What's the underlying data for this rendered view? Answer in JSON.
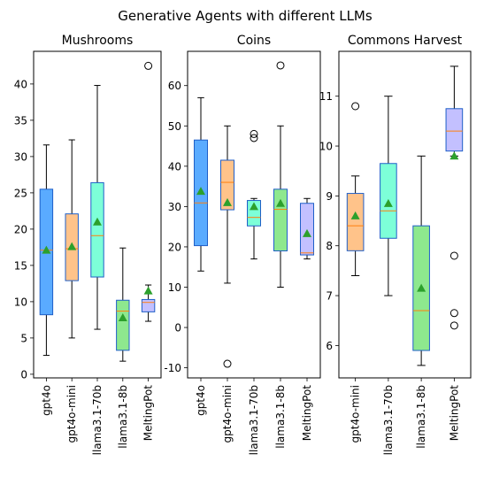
{
  "figure_title": "Generative Agents with different LLMs",
  "chart_data": [
    {
      "type": "box",
      "title": "Mushrooms",
      "ylim": [
        -0.5,
        44.5
      ],
      "yticks": [
        0,
        5,
        10,
        15,
        20,
        25,
        30,
        35,
        40
      ],
      "boxes": [
        {
          "label": "gpt4o",
          "color": "#5aabff",
          "whislo": 2.6,
          "q1": 8.2,
          "med": 17.1,
          "q3": 25.5,
          "whishi": 31.6,
          "mean": 17.1,
          "fliers": []
        },
        {
          "label": "gpt4o-mini",
          "color": "#ffc38a",
          "whislo": 5.0,
          "q1": 12.9,
          "med": 17.3,
          "q3": 22.1,
          "whishi": 32.3,
          "mean": 17.6,
          "fliers": []
        },
        {
          "label": "llama3.1-70b",
          "color": "#7dffd8",
          "whislo": 6.2,
          "q1": 13.4,
          "med": 19.1,
          "q3": 26.4,
          "whishi": 39.8,
          "mean": 21.0,
          "fliers": []
        },
        {
          "label": "llama3.1-8b",
          "color": "#8ee88e",
          "whislo": 1.8,
          "q1": 3.3,
          "med": 8.7,
          "q3": 10.2,
          "whishi": 17.4,
          "mean": 7.8,
          "fliers": []
        },
        {
          "label": "MeltingPot",
          "color": "#c3c0ff",
          "whislo": 7.3,
          "q1": 8.6,
          "med": 9.9,
          "q3": 10.3,
          "whishi": 12.3,
          "mean": 11.5,
          "fliers": [
            42.5
          ]
        }
      ]
    },
    {
      "type": "box",
      "title": "Coins",
      "ylim": [
        -12.5,
        68.5
      ],
      "yticks": [
        -10,
        0,
        10,
        20,
        30,
        40,
        50,
        60
      ],
      "boxes": [
        {
          "label": "gpt4o",
          "color": "#5aabff",
          "whislo": 14.0,
          "q1": 20.3,
          "med": 30.9,
          "q3": 46.5,
          "whishi": 57.0,
          "mean": 33.8,
          "fliers": []
        },
        {
          "label": "gpt4o-mini",
          "color": "#ffc38a",
          "whislo": 11.0,
          "q1": 29.2,
          "med": 36.0,
          "q3": 41.5,
          "whishi": 50.0,
          "mean": 31.0,
          "fliers": [
            -9.0
          ]
        },
        {
          "label": "llama3.1-70b",
          "color": "#7dffd8",
          "whislo": 17.0,
          "q1": 25.2,
          "med": 27.3,
          "q3": 31.5,
          "whishi": 32.0,
          "mean": 30.0,
          "fliers": [
            47.0,
            48.0
          ]
        },
        {
          "label": "llama3.1-8b",
          "color": "#8ee88e",
          "whislo": 10.0,
          "q1": 19.0,
          "med": 29.3,
          "q3": 34.3,
          "whishi": 50.0,
          "mean": 30.8,
          "fliers": [
            65.0
          ]
        },
        {
          "label": "MeltingPot",
          "color": "#c3c0ff",
          "whislo": 17.0,
          "q1": 18.0,
          "med": 18.5,
          "q3": 30.8,
          "whishi": 32.0,
          "mean": 23.3,
          "fliers": []
        }
      ]
    },
    {
      "type": "box",
      "title": "Commons Harvest",
      "ylim": [
        5.35,
        11.9
      ],
      "yticks": [
        6,
        7,
        8,
        9,
        10,
        11
      ],
      "boxes": [
        {
          "label": "gpt4o-mini",
          "color": "#ffc38a",
          "whislo": 7.4,
          "q1": 7.9,
          "med": 8.4,
          "q3": 9.05,
          "whishi": 9.4,
          "mean": 8.6,
          "fliers": [
            10.8
          ]
        },
        {
          "label": "llama3.1-70b",
          "color": "#7dffd8",
          "whislo": 7.0,
          "q1": 8.15,
          "med": 8.7,
          "q3": 9.65,
          "whishi": 11.0,
          "mean": 8.85,
          "fliers": []
        },
        {
          "label": "llama3.1-8b",
          "color": "#8ee88e",
          "whislo": 5.6,
          "q1": 5.9,
          "med": 6.7,
          "q3": 8.4,
          "whishi": 9.8,
          "mean": 7.15,
          "fliers": []
        },
        {
          "label": "MeltingPot",
          "color": "#c3c0ff",
          "whislo": 9.8,
          "q1": 9.9,
          "med": 10.3,
          "q3": 10.75,
          "whishi": 11.6,
          "mean": 9.8,
          "fliers": [
            6.4,
            6.65,
            7.8
          ]
        }
      ]
    }
  ],
  "colors": {
    "median": "#ff7f0e",
    "mean_marker": "#2ca02c",
    "box_edge": "#1f5fc8"
  }
}
